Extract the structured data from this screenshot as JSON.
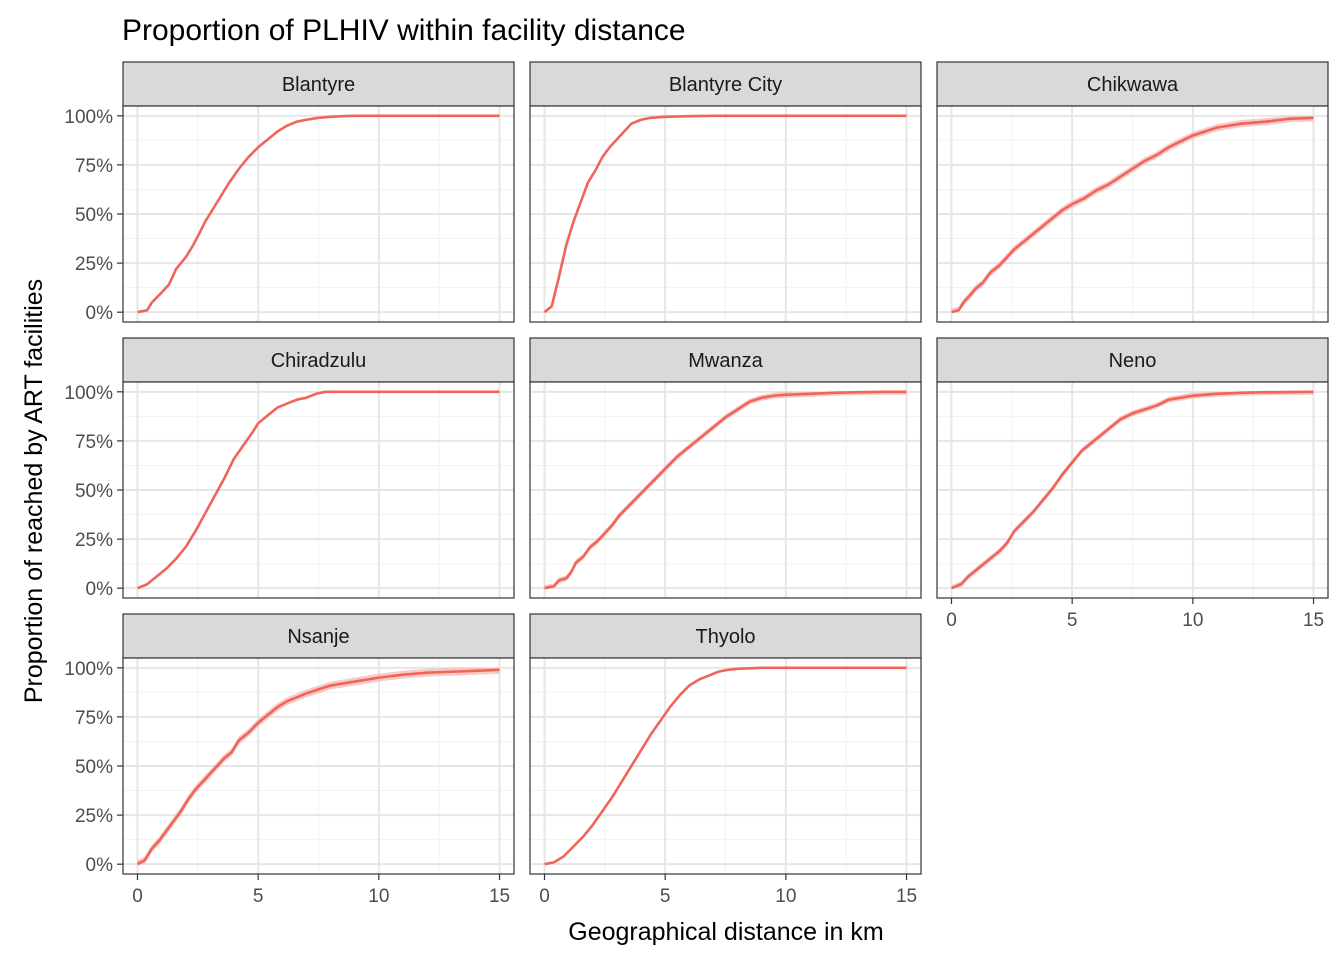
{
  "chart_data": {
    "type": "line",
    "title": "Proportion of PLHIV within facility distance",
    "xlabel": "Geographical distance in km",
    "ylabel": "Proportion of reached by ART facilities",
    "xlim": [
      -0.6,
      15.6
    ],
    "ylim": [
      -0.05,
      1.05
    ],
    "x_ticks": [
      0,
      5,
      10,
      15
    ],
    "x_tick_labels": [
      "0",
      "5",
      "10",
      "15"
    ],
    "y_ticks": [
      0,
      0.25,
      0.5,
      0.75,
      1.0
    ],
    "y_tick_labels": [
      "0%",
      "25%",
      "50%",
      "75%",
      "100%"
    ],
    "grid": true,
    "line_color": "#f0645a",
    "ribbon_color": "#f6b3ae",
    "strip_fill": "#d9d9d9",
    "panels": [
      {
        "name": "Blantyre",
        "x": [
          0,
          0.4,
          0.6,
          1.0,
          1.3,
          1.6,
          2.0,
          2.3,
          2.6,
          2.8,
          3.0,
          3.4,
          3.8,
          4.2,
          4.6,
          5.0,
          5.4,
          5.8,
          6.2,
          6.6,
          7.0,
          7.5,
          8.0,
          8.5,
          9.0,
          10.0,
          12.0,
          15.0
        ],
        "y": [
          0,
          0.01,
          0.05,
          0.1,
          0.14,
          0.22,
          0.28,
          0.34,
          0.41,
          0.46,
          0.5,
          0.58,
          0.66,
          0.73,
          0.79,
          0.84,
          0.88,
          0.92,
          0.95,
          0.97,
          0.98,
          0.99,
          0.995,
          0.998,
          1.0,
          1.0,
          1.0,
          1.0
        ],
        "band": 0.0
      },
      {
        "name": "Blantyre City",
        "x": [
          0,
          0.3,
          0.6,
          0.9,
          1.2,
          1.5,
          1.8,
          2.1,
          2.4,
          2.7,
          3.0,
          3.3,
          3.6,
          4.0,
          4.4,
          5.0,
          6.0,
          7.0,
          10.0,
          15.0
        ],
        "y": [
          0,
          0.03,
          0.18,
          0.34,
          0.46,
          0.56,
          0.66,
          0.72,
          0.79,
          0.84,
          0.88,
          0.92,
          0.96,
          0.98,
          0.99,
          0.995,
          0.998,
          1.0,
          1.0,
          1.0
        ],
        "band": 0.0
      },
      {
        "name": "Chikwawa",
        "x": [
          0,
          0.3,
          0.5,
          0.8,
          1.0,
          1.3,
          1.6,
          2.0,
          2.3,
          2.6,
          3.0,
          3.4,
          3.8,
          4.2,
          4.6,
          5.0,
          5.5,
          6.0,
          6.5,
          7.0,
          7.5,
          8.0,
          8.5,
          9.0,
          9.5,
          10.0,
          10.5,
          11.0,
          12.0,
          13.0,
          14.0,
          15.0
        ],
        "y": [
          0,
          0.01,
          0.05,
          0.09,
          0.12,
          0.15,
          0.2,
          0.24,
          0.28,
          0.32,
          0.36,
          0.4,
          0.44,
          0.48,
          0.52,
          0.55,
          0.58,
          0.62,
          0.65,
          0.69,
          0.73,
          0.77,
          0.8,
          0.84,
          0.87,
          0.9,
          0.92,
          0.94,
          0.96,
          0.97,
          0.985,
          0.99
        ],
        "band": 0.018
      },
      {
        "name": "Chiradzulu",
        "x": [
          0,
          0.4,
          0.8,
          1.2,
          1.6,
          2.0,
          2.4,
          2.8,
          3.2,
          3.6,
          4.0,
          4.4,
          4.8,
          5.0,
          5.4,
          5.8,
          6.2,
          6.6,
          7.0,
          7.4,
          7.8,
          8.5,
          10.0,
          12.0,
          15.0
        ],
        "y": [
          0,
          0.02,
          0.06,
          0.1,
          0.15,
          0.21,
          0.29,
          0.38,
          0.47,
          0.56,
          0.66,
          0.73,
          0.8,
          0.84,
          0.88,
          0.92,
          0.94,
          0.96,
          0.97,
          0.99,
          1.0,
          1.0,
          1.0,
          1.0,
          1.0
        ],
        "band": 0.0
      },
      {
        "name": "Mwanza",
        "x": [
          0,
          0.4,
          0.6,
          0.9,
          1.1,
          1.3,
          1.6,
          1.9,
          2.2,
          2.5,
          2.8,
          3.1,
          3.5,
          3.9,
          4.3,
          4.7,
          5.1,
          5.5,
          6.0,
          6.5,
          7.0,
          7.5,
          8.0,
          8.5,
          9.0,
          9.5,
          10.0,
          11.0,
          12.0,
          13.0,
          14.0,
          15.0
        ],
        "y": [
          0,
          0.01,
          0.04,
          0.05,
          0.08,
          0.13,
          0.16,
          0.21,
          0.24,
          0.28,
          0.32,
          0.37,
          0.42,
          0.47,
          0.52,
          0.57,
          0.62,
          0.67,
          0.72,
          0.77,
          0.82,
          0.87,
          0.91,
          0.95,
          0.97,
          0.98,
          0.985,
          0.99,
          0.995,
          0.998,
          1.0,
          1.0
        ],
        "band": 0.015
      },
      {
        "name": "Neno",
        "x": [
          0,
          0.4,
          0.7,
          1.0,
          1.3,
          1.6,
          2.0,
          2.3,
          2.6,
          3.0,
          3.4,
          3.8,
          4.2,
          4.6,
          5.0,
          5.4,
          5.8,
          6.2,
          6.6,
          7.0,
          7.5,
          8.0,
          8.5,
          9.0,
          9.5,
          10.0,
          11.0,
          12.0,
          13.0,
          15.0
        ],
        "y": [
          0,
          0.02,
          0.06,
          0.09,
          0.12,
          0.15,
          0.19,
          0.23,
          0.29,
          0.34,
          0.39,
          0.45,
          0.51,
          0.58,
          0.64,
          0.7,
          0.74,
          0.78,
          0.82,
          0.86,
          0.89,
          0.91,
          0.93,
          0.96,
          0.97,
          0.98,
          0.99,
          0.995,
          0.998,
          1.0
        ],
        "band": 0.015
      },
      {
        "name": "Nsanje",
        "x": [
          0,
          0.3,
          0.6,
          0.9,
          1.2,
          1.5,
          1.8,
          2.1,
          2.4,
          2.7,
          3.0,
          3.3,
          3.6,
          3.9,
          4.2,
          4.6,
          5.0,
          5.4,
          5.8,
          6.2,
          6.6,
          7.0,
          7.5,
          8.0,
          8.5,
          9.0,
          9.5,
          10.0,
          11.0,
          12.0,
          13.0,
          14.0,
          15.0
        ],
        "y": [
          0,
          0.02,
          0.08,
          0.12,
          0.17,
          0.22,
          0.27,
          0.33,
          0.38,
          0.42,
          0.46,
          0.5,
          0.54,
          0.57,
          0.63,
          0.67,
          0.72,
          0.76,
          0.8,
          0.83,
          0.85,
          0.87,
          0.89,
          0.91,
          0.92,
          0.93,
          0.94,
          0.95,
          0.965,
          0.975,
          0.98,
          0.985,
          0.99
        ],
        "band": 0.02
      },
      {
        "name": "Thyolo",
        "x": [
          0,
          0.4,
          0.8,
          1.2,
          1.6,
          2.0,
          2.4,
          2.8,
          3.2,
          3.6,
          4.0,
          4.4,
          4.8,
          5.2,
          5.6,
          6.0,
          6.4,
          6.8,
          7.2,
          7.6,
          8.0,
          9.0,
          10.0,
          12.0,
          15.0
        ],
        "y": [
          0,
          0.01,
          0.04,
          0.09,
          0.14,
          0.2,
          0.27,
          0.34,
          0.42,
          0.5,
          0.58,
          0.66,
          0.73,
          0.8,
          0.86,
          0.91,
          0.94,
          0.96,
          0.98,
          0.99,
          0.995,
          1.0,
          1.0,
          1.0,
          1.0
        ],
        "band": 0.0
      }
    ]
  }
}
